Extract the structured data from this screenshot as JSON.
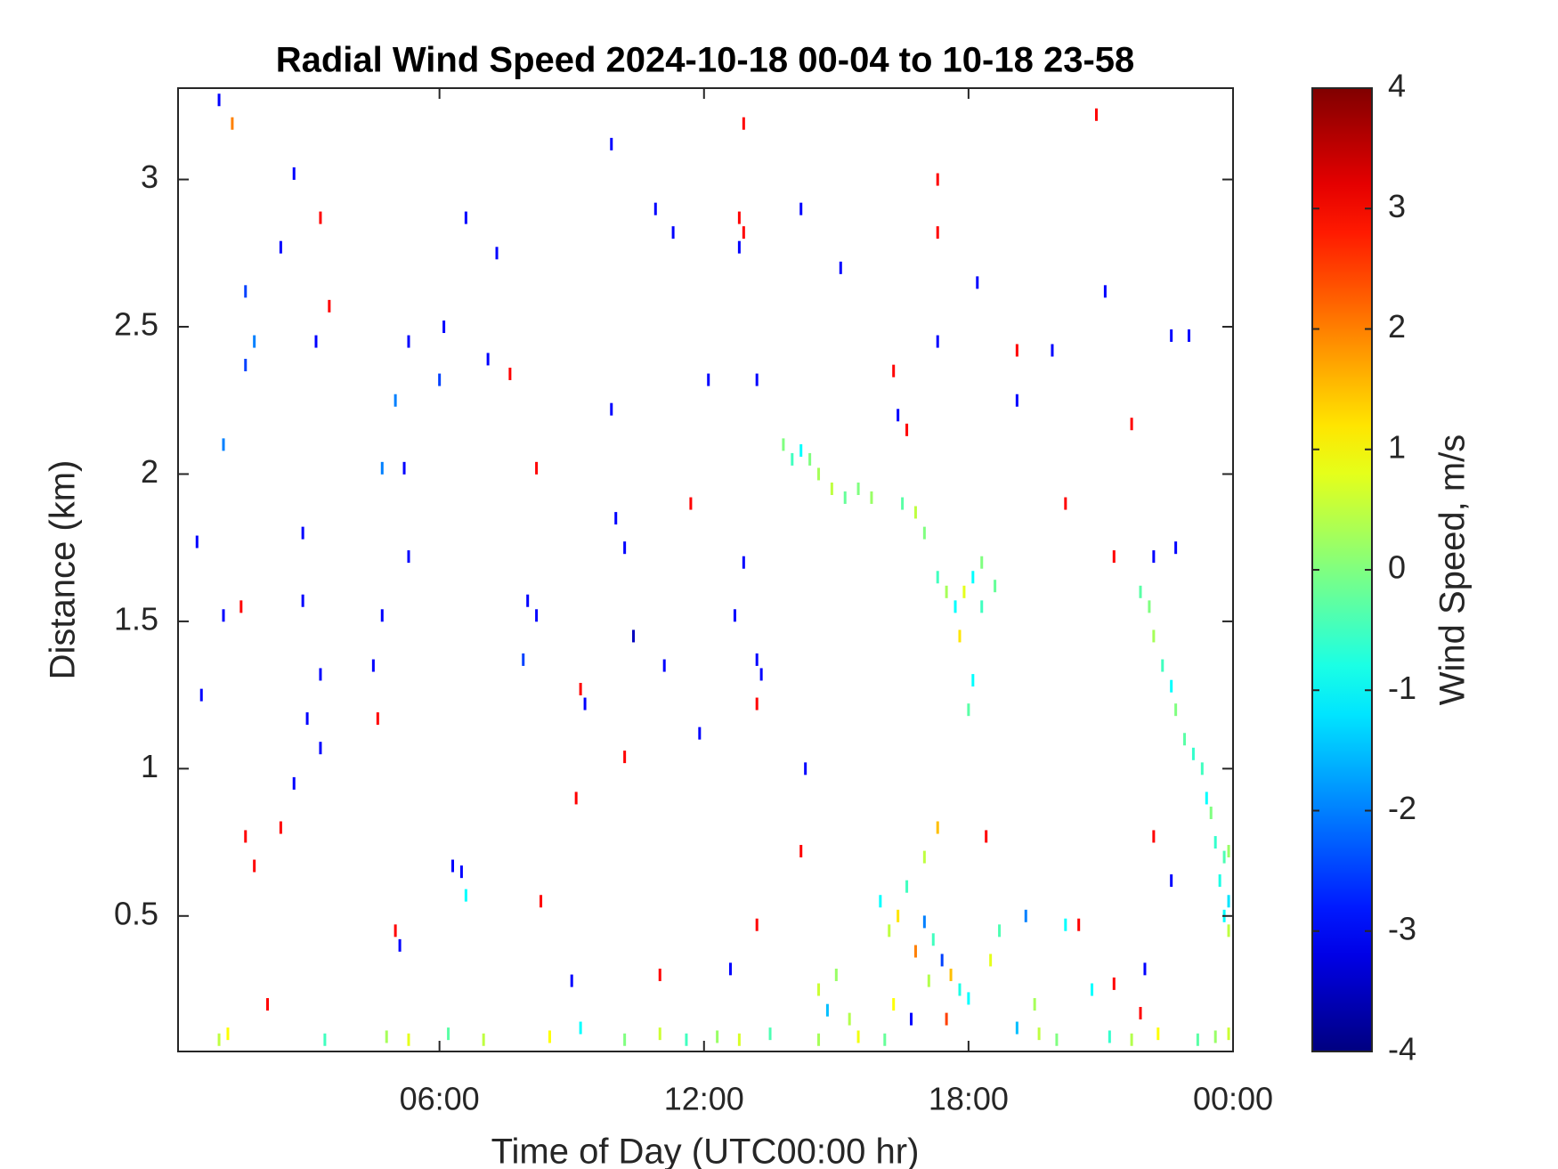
{
  "chart_data": {
    "type": "heatmap",
    "title": "Radial Wind Speed 2024-10-18 00-04 to 10-18 23-58",
    "x_label": "Time of Day (UTC00:00 hr)",
    "y_label": "Distance (km)",
    "colorbar_label": "Wind Speed, m/s",
    "colormap": "jet",
    "xlim": [
      0.07,
      24
    ],
    "xticks": [
      {
        "value": 6,
        "label": "06:00"
      },
      {
        "value": 12,
        "label": "12:00"
      },
      {
        "value": 18,
        "label": "18:00"
      },
      {
        "value": 24,
        "label": "00:00"
      }
    ],
    "ylim": [
      0.04,
      3.31
    ],
    "yticks": [
      0.5,
      1,
      1.5,
      2,
      2.5,
      3
    ],
    "clim": [
      -4,
      4
    ],
    "cticks": [
      -4,
      -3,
      -2,
      -1,
      0,
      1,
      2,
      3,
      4
    ],
    "x": [
      1.0,
      1.3,
      2.7,
      3.3,
      2.4,
      1.6,
      3.5,
      1.8,
      3.2,
      1.6,
      6.1,
      5.3,
      6.0,
      5.0,
      7.1,
      7.6,
      1.1,
      4.7,
      5.2,
      8.2,
      6.6,
      7.3,
      9.9,
      10.9,
      11.3,
      12.8,
      12.9,
      12.9,
      12.8,
      14.2,
      15.1,
      12.1,
      13.2,
      9.9,
      11.7,
      10.0,
      10.2,
      12.9,
      11.1,
      12.7,
      13.3,
      10.4,
      7.9,
      8.0,
      8.2,
      9.2,
      9.3,
      10.2,
      11.9,
      13.2,
      13.2,
      14.3,
      16.3,
      16.4,
      16.6,
      17.3,
      17.3,
      18.2,
      17.3,
      19.1,
      19.9,
      20.9,
      21.1,
      22.6,
      23.0,
      19.1,
      20.2,
      21.7,
      22.2,
      22.7,
      21.3,
      0.5,
      0.6,
      1.1,
      1.5,
      2.9,
      2.9,
      3.0,
      3.3,
      3.3,
      2.7,
      2.4,
      1.6,
      1.8,
      4.5,
      4.6,
      4.7,
      5.3,
      6.3,
      6.5,
      6.6,
      8.3,
      9.1,
      5.0,
      5.1,
      2.1,
      9.0,
      9.2,
      13.2,
      11.0,
      12.6,
      14.2,
      18.4,
      22.2,
      22.6,
      22.0,
      21.9,
      21.3,
      20.5,
      20.2,
      20.8,
      13.8,
      14.0,
      14.2,
      14.4,
      14.6,
      14.9,
      15.2,
      15.5,
      15.8,
      16.5,
      16.8,
      17.0,
      17.3,
      17.5,
      17.7,
      17.9,
      18.1,
      18.3,
      17.8,
      18.1,
      18.0,
      18.6,
      18.3,
      21.9,
      22.1,
      22.2,
      22.4,
      22.6,
      22.7,
      22.9,
      23.1,
      23.3,
      23.4,
      23.5,
      23.6,
      23.8,
      23.9,
      23.7,
      23.8,
      23.9,
      23.9,
      16.0,
      16.2,
      16.4,
      16.6,
      16.8,
      17.0,
      17.2,
      17.4,
      17.6,
      17.8,
      16.3,
      16.7,
      17.1,
      17.5,
      18.0,
      18.5,
      18.7,
      17.0,
      17.3,
      19.1,
      19.5,
      19.3,
      15.0,
      14.8,
      14.6,
      15.3,
      1.0,
      1.2,
      3.4,
      4.8,
      5.3,
      6.2,
      7.0,
      8.5,
      10.2,
      11.0,
      11.6,
      12.3,
      12.8,
      13.5,
      14.6,
      15.5,
      16.1,
      19.6,
      20.0,
      21.2,
      21.7,
      22.3,
      23.2,
      23.6,
      23.9
    ],
    "y": [
      3.27,
      3.19,
      3.02,
      2.87,
      2.77,
      2.62,
      2.57,
      2.45,
      2.45,
      2.37,
      2.5,
      2.45,
      2.32,
      2.25,
      2.39,
      2.34,
      2.1,
      2.02,
      2.02,
      2.02,
      2.87,
      2.75,
      3.12,
      2.9,
      2.82,
      2.87,
      3.19,
      2.82,
      2.77,
      2.9,
      2.7,
      2.32,
      2.32,
      2.22,
      1.9,
      1.85,
      1.75,
      1.7,
      1.35,
      1.52,
      1.32,
      1.45,
      1.37,
      1.57,
      1.52,
      1.27,
      1.22,
      1.04,
      1.12,
      1.22,
      1.37,
      1.0,
      2.35,
      2.2,
      2.15,
      3.0,
      2.82,
      2.65,
      2.45,
      2.42,
      2.42,
      3.22,
      2.62,
      2.47,
      2.47,
      2.25,
      1.9,
      2.17,
      1.72,
      1.75,
      1.72,
      1.77,
      1.25,
      1.52,
      1.55,
      1.8,
      1.57,
      1.17,
      1.32,
      1.07,
      0.95,
      0.8,
      0.77,
      0.67,
      1.35,
      1.17,
      1.52,
      1.72,
      0.67,
      0.65,
      0.57,
      0.55,
      0.9,
      0.45,
      0.4,
      0.2,
      0.28,
      0.12,
      0.47,
      0.3,
      0.32,
      0.72,
      0.77,
      0.77,
      0.62,
      0.32,
      0.17,
      0.27,
      0.47,
      0.47,
      0.25,
      2.1,
      2.05,
      2.08,
      2.05,
      2.0,
      1.95,
      1.92,
      1.95,
      1.92,
      1.9,
      1.87,
      1.8,
      1.65,
      1.6,
      1.55,
      1.6,
      1.65,
      1.55,
      1.45,
      1.3,
      1.2,
      1.62,
      1.7,
      1.6,
      1.55,
      1.45,
      1.35,
      1.28,
      1.2,
      1.1,
      1.05,
      1.0,
      0.9,
      0.85,
      0.75,
      0.7,
      0.72,
      0.62,
      0.5,
      0.45,
      0.55,
      0.55,
      0.45,
      0.5,
      0.6,
      0.38,
      0.48,
      0.42,
      0.35,
      0.3,
      0.25,
      0.2,
      0.15,
      0.28,
      0.15,
      0.22,
      0.35,
      0.45,
      0.7,
      0.8,
      0.12,
      0.2,
      0.5,
      0.3,
      0.18,
      0.25,
      0.15,
      0.08,
      0.1,
      0.08,
      0.09,
      0.08,
      0.1,
      0.08,
      0.09,
      0.08,
      0.1,
      0.08,
      0.09,
      0.08,
      0.1,
      0.08,
      0.09,
      0.08,
      0.1,
      0.08,
      0.09,
      0.08,
      0.1,
      0.08,
      0.09,
      0.1
    ],
    "values": [
      -3,
      2,
      -3,
      3,
      -3,
      -2.5,
      3,
      -2,
      -3,
      -2.5,
      -3,
      -3,
      -2.5,
      -2,
      -3,
      3,
      -2,
      -2,
      -3,
      3,
      -3,
      -3,
      -3,
      -3,
      -3,
      3,
      3,
      3,
      -3,
      -3,
      -3,
      -3,
      -3,
      -3,
      3,
      -3,
      -3,
      -3,
      -3,
      -3,
      -3,
      -3.5,
      -2.5,
      -3,
      -3,
      3,
      -3,
      3,
      -3,
      3,
      -3,
      -3,
      3,
      -3,
      3,
      3,
      3,
      -3,
      -3,
      3,
      -3,
      3,
      -3,
      -3,
      -3,
      -3,
      3,
      3,
      -3,
      -3,
      3,
      -3,
      -3,
      -3,
      3,
      -3,
      -3,
      -3,
      -3,
      -3,
      -3,
      3,
      3,
      3,
      -3,
      3,
      -3,
      -3,
      -3,
      -3,
      -1,
      3,
      3,
      3,
      -3,
      3,
      -3,
      -1,
      3,
      3,
      -3,
      3,
      3,
      3,
      -3,
      -3,
      3,
      3,
      3,
      -1,
      -1,
      0,
      -0.5,
      -1,
      0,
      0.3,
      0.5,
      -0.2,
      0,
      0.2,
      -0.3,
      0.5,
      0,
      -0.5,
      0.3,
      -1,
      0.8,
      -1,
      -0.5,
      1.2,
      -1,
      -0.3,
      -0.2,
      0,
      -0.3,
      0,
      0.3,
      -0.5,
      -1,
      0,
      -0.3,
      -0.6,
      -0.5,
      -1,
      0,
      -0.6,
      -0.4,
      0.2,
      -0.8,
      -1,
      0.5,
      -1.2,
      -1,
      0.5,
      1.2,
      -0.5,
      2,
      -2,
      -0.5,
      -2.5,
      1.5,
      -0.8,
      1,
      -3,
      0.4,
      2.5,
      -1,
      0.8,
      -0.4,
      0.5,
      1.5,
      -1.5,
      0.3,
      -2,
      0.2,
      -1.5,
      0.6,
      0.4,
      0.5,
      1,
      -0.5,
      0.3,
      0.8,
      -0.3,
      0.5,
      1,
      0,
      0.6,
      -0.5,
      0.2,
      0.7,
      -0.4,
      0.3,
      0.9,
      -0.2,
      0.5,
      0,
      -0.6,
      0.4,
      1,
      -0.3,
      0.2,
      0.6
    ]
  }
}
